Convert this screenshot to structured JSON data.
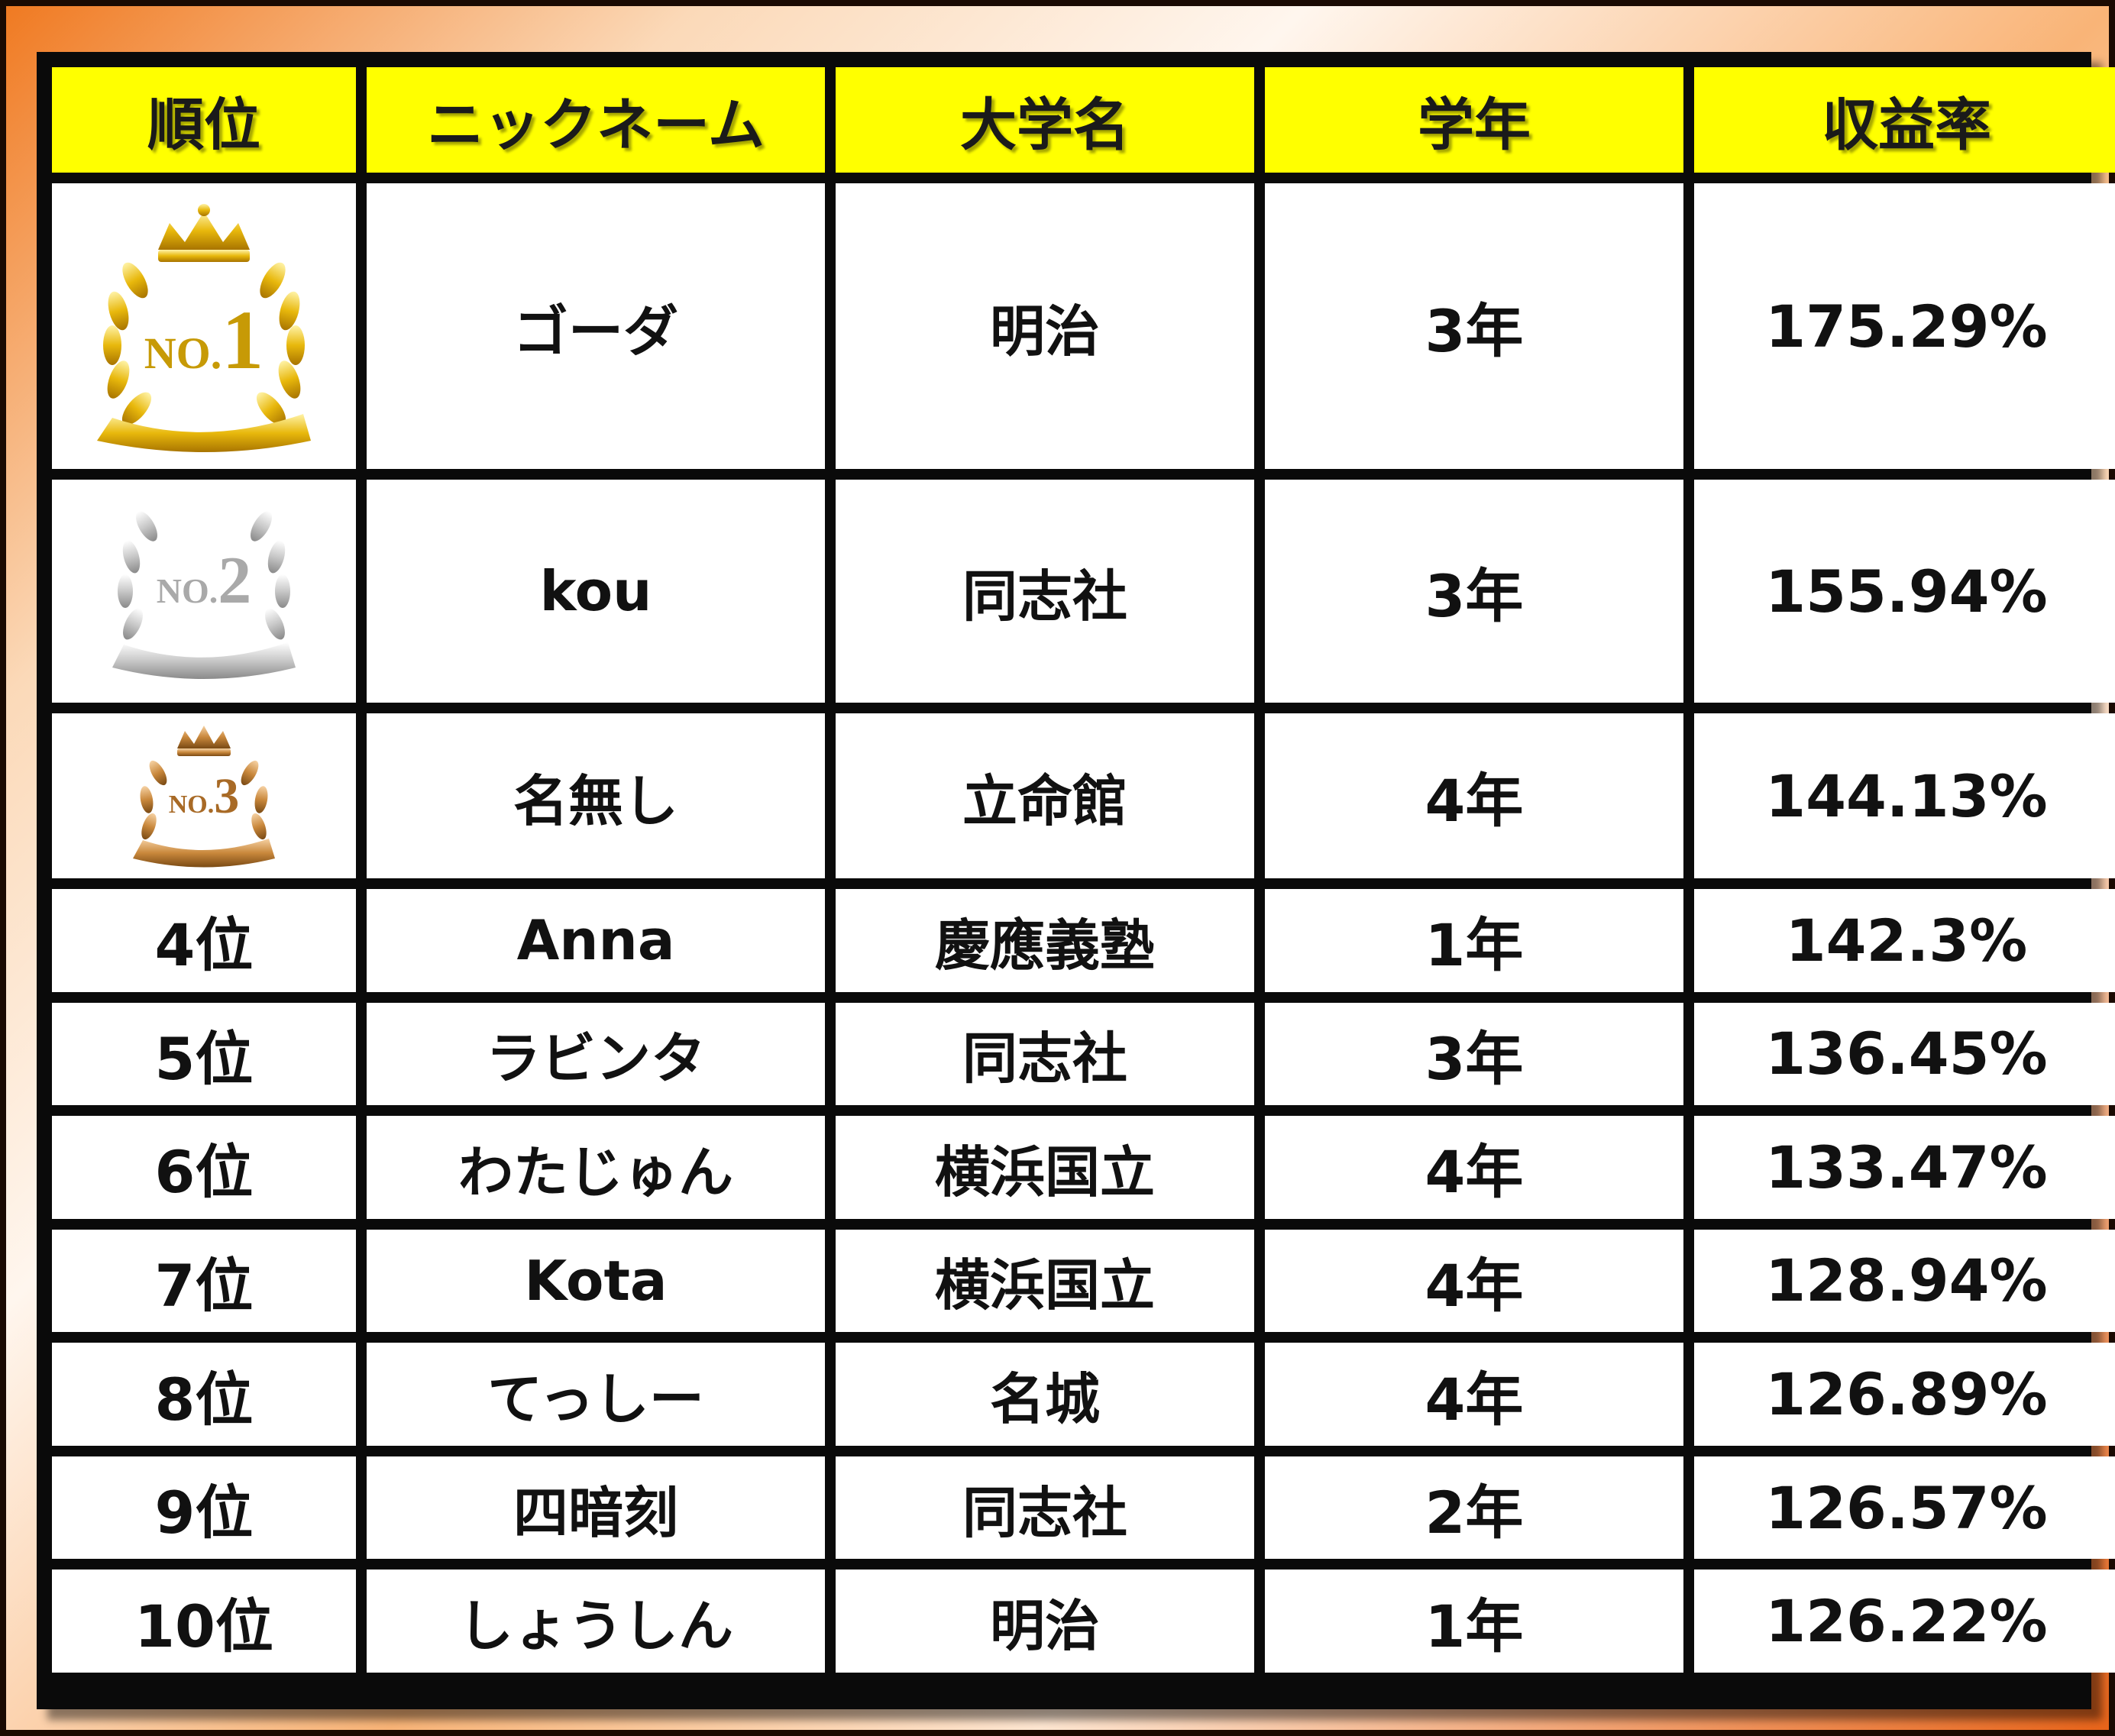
{
  "headers": {
    "rank": "順位",
    "nickname": "ニックネーム",
    "university": "大学名",
    "grade": "学年",
    "return_rate": "収益率"
  },
  "medals": [
    {
      "text": "NO.1",
      "numeral": "1",
      "prefix": "NO.",
      "color": "#e8b80c",
      "icon": "gold-medal-icon"
    },
    {
      "text": "NO.2",
      "numeral": "2",
      "prefix": "NO.",
      "color": "#c8c8c8",
      "icon": "silver-medal-icon"
    },
    {
      "text": "NO.3",
      "numeral": "3",
      "prefix": "NO.",
      "color": "#c9883c",
      "icon": "bronze-medal-icon"
    }
  ],
  "rows": [
    {
      "rank": "",
      "nickname": "ゴーダ",
      "university": "明治",
      "grade": "3年",
      "return_rate": "175.29%"
    },
    {
      "rank": "",
      "nickname": "kou",
      "university": "同志社",
      "grade": "3年",
      "return_rate": "155.94%"
    },
    {
      "rank": "",
      "nickname": "名無し",
      "university": "立命館",
      "grade": "4年",
      "return_rate": "144.13%"
    },
    {
      "rank": "4位",
      "nickname": "Anna",
      "university": "慶應義塾",
      "grade": "1年",
      "return_rate": "142.3%"
    },
    {
      "rank": "5位",
      "nickname": "ラビンタ",
      "university": "同志社",
      "grade": "3年",
      "return_rate": "136.45%"
    },
    {
      "rank": "6位",
      "nickname": "わたじゅん",
      "university": "横浜国立",
      "grade": "4年",
      "return_rate": "133.47%"
    },
    {
      "rank": "7位",
      "nickname": "Kota",
      "university": "横浜国立",
      "grade": "4年",
      "return_rate": "128.94%"
    },
    {
      "rank": "8位",
      "nickname": "てっしー",
      "university": "名城",
      "grade": "4年",
      "return_rate": "126.89%"
    },
    {
      "rank": "9位",
      "nickname": "四暗刻",
      "university": "同志社",
      "grade": "2年",
      "return_rate": "126.57%"
    },
    {
      "rank": "10位",
      "nickname": "しょうしん",
      "university": "明治",
      "grade": "1年",
      "return_rate": "126.22%"
    }
  ]
}
